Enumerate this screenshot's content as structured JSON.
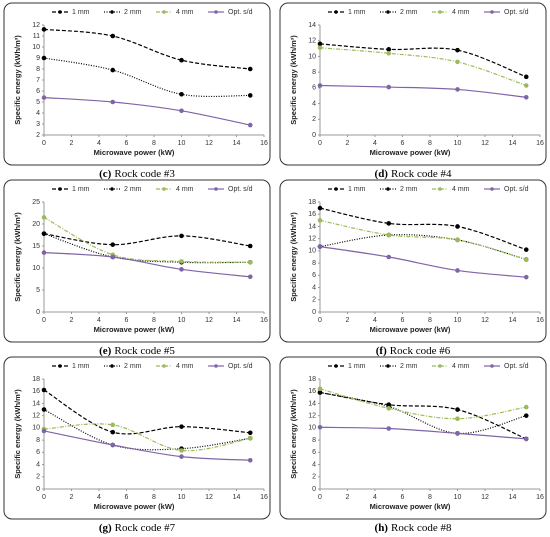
{
  "chart_data": [
    {
      "type": "line",
      "letter": "(c)",
      "caption": "Rock code #3",
      "x_label": "Microwave power (kW)",
      "y_label": "Specific energy (kWh/m³)",
      "x": [
        0,
        5,
        10,
        15
      ],
      "xlim": [
        0,
        16
      ],
      "xticks": [
        0,
        2,
        4,
        6,
        8,
        10,
        12,
        14,
        16
      ],
      "ylim": [
        2,
        12
      ],
      "yticks": [
        2,
        3,
        4,
        5,
        6,
        7,
        8,
        9,
        10,
        11,
        12
      ],
      "series": [
        {
          "name": "1 mm",
          "color": "#000000",
          "style": "dashed",
          "values": [
            11.6,
            11.0,
            8.8,
            8.0
          ]
        },
        {
          "name": "2 mm",
          "color": "#000000",
          "style": "dotted",
          "values": [
            9.0,
            7.9,
            5.7,
            5.6
          ]
        },
        {
          "name": "4 mm",
          "color": "#9bbb59",
          "style": "dashdot",
          "values": [
            null,
            null,
            null,
            null
          ]
        },
        {
          "name": "Opt. s/d",
          "color": "#7f64a8",
          "style": "solid",
          "values": [
            5.4,
            5.0,
            4.2,
            2.9
          ]
        }
      ]
    },
    {
      "type": "line",
      "letter": "(d)",
      "caption": "Rock code #4",
      "x_label": "Microwave power (kW)",
      "y_label": "Specific energy (kWh/m³)",
      "x": [
        0,
        5,
        10,
        15
      ],
      "xlim": [
        0,
        16
      ],
      "xticks": [
        0,
        2,
        4,
        6,
        8,
        10,
        12,
        14,
        16
      ],
      "ylim": [
        0,
        14
      ],
      "yticks": [
        0,
        2,
        4,
        6,
        8,
        10,
        12,
        14
      ],
      "series": [
        {
          "name": "1 mm",
          "color": "#000000",
          "style": "dashed",
          "values": [
            11.6,
            10.9,
            10.8,
            7.4
          ]
        },
        {
          "name": "2 mm",
          "color": "#000000",
          "style": "dotted",
          "values": [
            null,
            null,
            null,
            null
          ]
        },
        {
          "name": "4 mm",
          "color": "#9bbb59",
          "style": "dashdot",
          "values": [
            11.1,
            10.4,
            9.3,
            6.3
          ]
        },
        {
          "name": "Opt. s/d",
          "color": "#7f64a8",
          "style": "solid",
          "values": [
            6.3,
            6.1,
            5.8,
            4.8
          ]
        }
      ]
    },
    {
      "type": "line",
      "letter": "(e)",
      "caption": "Rock code #5",
      "x_label": "Microwave power (kW)",
      "y_label": "Specific energy (kWh/m³)",
      "x": [
        0,
        5,
        10,
        15
      ],
      "xlim": [
        0,
        16
      ],
      "xticks": [
        0,
        2,
        4,
        6,
        8,
        10,
        12,
        14,
        16
      ],
      "ylim": [
        0,
        25
      ],
      "yticks": [
        0,
        5,
        10,
        15,
        20,
        25
      ],
      "series": [
        {
          "name": "1 mm",
          "color": "#000000",
          "style": "dashed",
          "values": [
            17.8,
            15.3,
            17.3,
            15.0
          ]
        },
        {
          "name": "2 mm",
          "color": "#000000",
          "style": "dotted",
          "values": [
            17.8,
            12.5,
            11.3,
            11.3
          ]
        },
        {
          "name": "4 mm",
          "color": "#9bbb59",
          "style": "dashdot",
          "values": [
            21.5,
            13.0,
            11.5,
            11.3
          ]
        },
        {
          "name": "Opt. s/d",
          "color": "#7f64a8",
          "style": "solid",
          "values": [
            13.5,
            12.5,
            9.7,
            8.0
          ]
        }
      ]
    },
    {
      "type": "line",
      "letter": "(f)",
      "caption": "Rock code #6",
      "x_label": "Microwave power (kW)",
      "y_label": "Specific energy (kWh/m³)",
      "x": [
        0,
        5,
        10,
        15
      ],
      "xlim": [
        0,
        16
      ],
      "xticks": [
        0,
        2,
        4,
        6,
        8,
        10,
        12,
        14,
        16
      ],
      "ylim": [
        0,
        18
      ],
      "yticks": [
        0,
        2,
        4,
        6,
        8,
        10,
        12,
        14,
        16,
        18
      ],
      "series": [
        {
          "name": "1 mm",
          "color": "#000000",
          "style": "dashed",
          "values": [
            17.0,
            14.5,
            14.0,
            10.2
          ]
        },
        {
          "name": "2 mm",
          "color": "#000000",
          "style": "dotted",
          "values": [
            10.7,
            12.6,
            11.8,
            8.6
          ]
        },
        {
          "name": "4 mm",
          "color": "#9bbb59",
          "style": "dashdot",
          "values": [
            15.0,
            12.6,
            11.8,
            8.6
          ]
        },
        {
          "name": "Opt. s/d",
          "color": "#7f64a8",
          "style": "solid",
          "values": [
            10.7,
            9.0,
            6.8,
            5.7
          ]
        }
      ]
    },
    {
      "type": "line",
      "letter": "(g)",
      "caption": "Rock code #7",
      "x_label": "Microwave power (kW)",
      "y_label": "Specific energy (kWh/m³)",
      "x": [
        0,
        5,
        10,
        15
      ],
      "xlim": [
        0,
        16
      ],
      "xticks": [
        0,
        2,
        4,
        6,
        8,
        10,
        12,
        14,
        16
      ],
      "ylim": [
        0,
        18
      ],
      "yticks": [
        0,
        2,
        4,
        6,
        8,
        10,
        12,
        14,
        16,
        18
      ],
      "series": [
        {
          "name": "1 mm",
          "color": "#000000",
          "style": "dashed",
          "values": [
            16.2,
            9.3,
            10.2,
            9.2
          ]
        },
        {
          "name": "2 mm",
          "color": "#000000",
          "style": "dotted",
          "values": [
            13.0,
            7.2,
            6.6,
            8.3
          ]
        },
        {
          "name": "4 mm",
          "color": "#9bbb59",
          "style": "dashdot",
          "values": [
            9.8,
            10.5,
            6.3,
            8.3
          ]
        },
        {
          "name": "Opt. s/d",
          "color": "#7f64a8",
          "style": "solid",
          "values": [
            9.5,
            7.2,
            5.3,
            4.7
          ]
        }
      ]
    },
    {
      "type": "line",
      "letter": "(h)",
      "caption": "Rock code #8",
      "x_label": "Microwave power (kW)",
      "y_label": "Specific energy (kWh/m³)",
      "x": [
        0,
        5,
        10,
        15
      ],
      "xlim": [
        0,
        16
      ],
      "xticks": [
        0,
        2,
        4,
        6,
        8,
        10,
        12,
        14,
        16
      ],
      "ylim": [
        0,
        18
      ],
      "yticks": [
        0,
        2,
        4,
        6,
        8,
        10,
        12,
        14,
        16,
        18
      ],
      "series": [
        {
          "name": "1 mm",
          "color": "#000000",
          "style": "dashed",
          "values": [
            15.8,
            13.8,
            13.0,
            8.2
          ]
        },
        {
          "name": "2 mm",
          "color": "#000000",
          "style": "dotted",
          "values": [
            15.8,
            13.5,
            9.1,
            12.0
          ]
        },
        {
          "name": "4 mm",
          "color": "#9bbb59",
          "style": "dashdot",
          "values": [
            16.4,
            13.2,
            11.5,
            13.4
          ]
        },
        {
          "name": "Opt. s/d",
          "color": "#7f64a8",
          "style": "solid",
          "values": [
            10.1,
            9.9,
            9.1,
            8.2
          ]
        }
      ]
    }
  ]
}
